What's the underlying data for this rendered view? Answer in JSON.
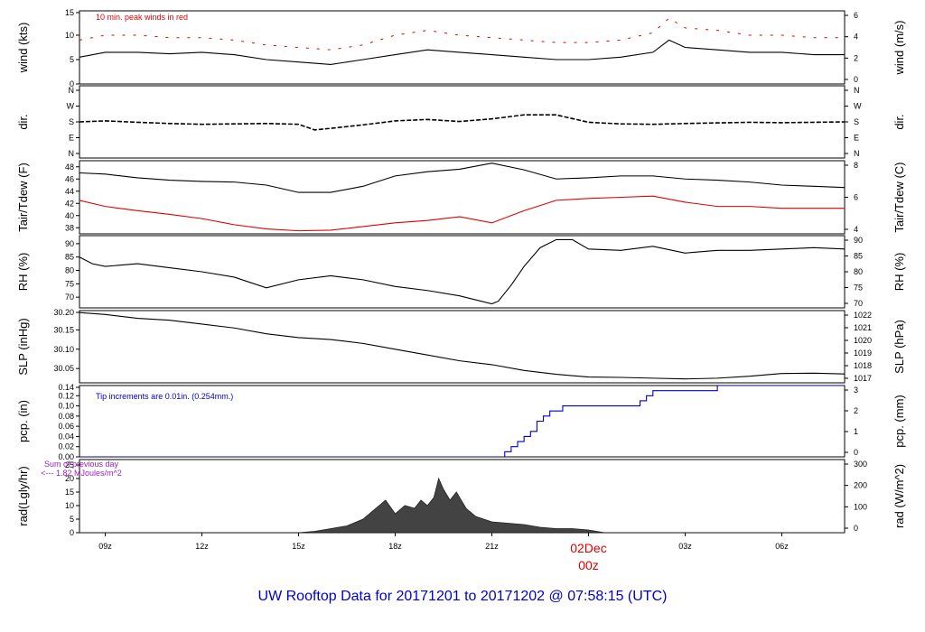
{
  "page": {
    "title": "UW Rooftop Data for 20171201  to  20171202 @ 07:58:15  (UTC)"
  },
  "chart_data": {
    "type": "line",
    "x_axis": {
      "unit": "hours since 2017-12-01 00z",
      "range": [
        8.2,
        31.95
      ],
      "ticks": [
        {
          "label": "09z",
          "value": 9
        },
        {
          "label": "12z",
          "value": 12
        },
        {
          "label": "15z",
          "value": 15
        },
        {
          "label": "18z",
          "value": 18
        },
        {
          "label": "21z",
          "value": 21
        },
        {
          "label": "00z",
          "value": 24
        },
        {
          "label": "03z",
          "value": 27
        },
        {
          "label": "06z",
          "value": 30
        }
      ],
      "date_marker": {
        "date": "02Dec",
        "time": "00z",
        "value": 24
      }
    },
    "panels": [
      {
        "id": "wind",
        "left_label": "wind (kts)",
        "right_label": "wind (m/s)",
        "ylim": [
          0,
          15
        ],
        "left_ticks": [
          "0",
          "5",
          "10",
          "15"
        ],
        "right_ticks": [
          "0",
          "2",
          "4",
          "6"
        ],
        "annotation": "10 min. peak winds in red",
        "series": [
          {
            "name": "wind speed",
            "color": "#000000",
            "x": [
              8.2,
              9,
              10,
              11,
              12,
              13,
              14,
              15,
              16,
              17,
              18,
              19,
              20,
              21,
              22,
              23,
              24,
              25,
              26,
              26.5,
              27,
              28,
              29,
              30,
              31,
              31.95
            ],
            "y": [
              5.5,
              6.5,
              6.5,
              6.2,
              6.5,
              6.0,
              5.0,
              4.5,
              4.0,
              5.0,
              6.0,
              7.0,
              6.5,
              6.0,
              5.5,
              5.0,
              5.0,
              5.5,
              6.5,
              9.0,
              7.5,
              7.0,
              6.5,
              6.5,
              6.0,
              6.0
            ]
          },
          {
            "name": "10 min peak",
            "color": "#e00000",
            "x": [
              8.2,
              9,
              10,
              11,
              12,
              13,
              14,
              15,
              16,
              17,
              18,
              19,
              20,
              21,
              22,
              23,
              24,
              25,
              26,
              26.5,
              27,
              28,
              29,
              30,
              31,
              31.95
            ],
            "y": [
              9.0,
              10.0,
              10.0,
              9.5,
              9.5,
              9.0,
              8.0,
              7.5,
              7.0,
              8.0,
              10.0,
              11.0,
              10.0,
              9.5,
              9.0,
              8.5,
              8.5,
              9.0,
              10.5,
              13.5,
              11.5,
              11.0,
              10.0,
              10.0,
              9.5,
              9.5
            ]
          }
        ]
      },
      {
        "id": "dir",
        "left_label": "dir.",
        "right_label": "dir.",
        "ylim": [
          0,
          360
        ],
        "left_ticks": [
          "N",
          "E",
          "S",
          "W",
          "N"
        ],
        "right_ticks": [
          "N",
          "E",
          "S",
          "W",
          "N"
        ],
        "series": [
          {
            "name": "wind direction (deg)",
            "color": "#000000",
            "x": [
              8.2,
              9,
              10,
              11,
              12,
              13,
              14,
              15,
              15.5,
              16,
              17,
              18,
              19,
              20,
              21,
              22,
              23,
              24,
              25,
              26,
              27,
              28,
              29,
              30,
              31,
              31.95
            ],
            "y": [
              180,
              185,
              178,
              172,
              168,
              170,
              172,
              168,
              140,
              148,
              165,
              185,
              192,
              182,
              195,
              215,
              215,
              178,
              170,
              168,
              172,
              175,
              178,
              176,
              178,
              180
            ]
          }
        ]
      },
      {
        "id": "temp",
        "left_label": "Tair/Tdew (F)",
        "right_label": "Tair/Tdew (C)",
        "ylim": [
          37,
          49
        ],
        "left_ticks": [
          "38",
          "40",
          "42",
          "44",
          "46",
          "48"
        ],
        "right_ticks": [
          "4",
          "6",
          "8"
        ],
        "series": [
          {
            "name": "Tair",
            "color": "#000000",
            "x": [
              8.2,
              9,
              10,
              11,
              12,
              13,
              14,
              15,
              16,
              17,
              18,
              19,
              20,
              21,
              22,
              23,
              24,
              25,
              26,
              27,
              28,
              29,
              30,
              31,
              31.95
            ],
            "y": [
              47.0,
              46.8,
              46.2,
              45.8,
              45.6,
              45.5,
              45.0,
              43.8,
              43.8,
              44.8,
              46.5,
              47.2,
              47.6,
              48.6,
              47.5,
              46.0,
              46.2,
              46.5,
              46.5,
              46.0,
              45.8,
              45.5,
              45.0,
              44.8,
              44.6
            ]
          },
          {
            "name": "Tdew",
            "color": "#e00000",
            "x": [
              8.2,
              9,
              10,
              11,
              12,
              13,
              14,
              15,
              16,
              17,
              18,
              19,
              20,
              21,
              22,
              23,
              24,
              25,
              26,
              27,
              28,
              29,
              30,
              31,
              31.95
            ],
            "y": [
              42.5,
              41.5,
              40.8,
              40.2,
              39.5,
              38.5,
              37.8,
              37.5,
              37.6,
              38.2,
              38.8,
              39.2,
              39.8,
              38.8,
              40.8,
              42.5,
              42.8,
              43.0,
              43.2,
              42.2,
              41.5,
              41.5,
              41.2,
              41.2,
              41.2
            ]
          }
        ]
      },
      {
        "id": "rh",
        "left_label": "RH (%)",
        "right_label": "RH (%)",
        "ylim": [
          66,
          93
        ],
        "left_ticks": [
          "70",
          "75",
          "80",
          "85",
          "90"
        ],
        "right_ticks": [
          "70",
          "75",
          "80",
          "85",
          "90"
        ],
        "series": [
          {
            "name": "relative humidity",
            "color": "#000000",
            "x": [
              8.2,
              8.6,
              9,
              10,
              11,
              12,
              13,
              14,
              15,
              16,
              17,
              18,
              19,
              20,
              21,
              21.2,
              21.6,
              22,
              22.5,
              23,
              23.5,
              24,
              25,
              26,
              27,
              28,
              29,
              30,
              31,
              31.95
            ],
            "y": [
              85.0,
              82.5,
              81.5,
              82.5,
              81.0,
              79.5,
              77.5,
              73.5,
              76.5,
              78.0,
              76.5,
              74.0,
              72.5,
              70.5,
              67.5,
              68.5,
              74.5,
              81.5,
              88.5,
              91.5,
              91.5,
              88.0,
              87.5,
              89.0,
              86.5,
              87.5,
              87.5,
              88.0,
              88.5,
              88.0
            ]
          }
        ]
      },
      {
        "id": "slp",
        "left_label": "SLP (inHg)",
        "right_label": "SLP (hPa)",
        "ylim": [
          30.013,
          30.2
        ],
        "left_ticks": [
          "30.05",
          "30.10",
          "30.15",
          "30.20"
        ],
        "right_ticks": [
          "1017",
          "1018",
          "1019",
          "1020",
          "1021",
          "1022"
        ],
        "series": [
          {
            "name": "sea level pressure",
            "color": "#000000",
            "x": [
              8.2,
              9,
              10,
              11,
              12,
              13,
              14,
              15,
              16,
              17,
              18,
              19,
              20,
              21,
              22,
              23,
              24,
              25,
              26,
              27,
              28,
              29,
              30,
              31,
              31.95
            ],
            "y": [
              30.195,
              30.19,
              30.18,
              30.175,
              30.165,
              30.155,
              30.14,
              30.13,
              30.125,
              30.115,
              30.1,
              30.085,
              30.07,
              30.06,
              30.045,
              30.035,
              30.028,
              30.027,
              30.025,
              30.023,
              30.025,
              30.03,
              30.037,
              30.038,
              30.036
            ]
          }
        ]
      },
      {
        "id": "pcp",
        "left_label": "pcp. (in)",
        "right_label": "pcp. (mm)",
        "ylim": [
          0,
          0.14
        ],
        "left_ticks": [
          "0.00",
          "0.02",
          "0.04",
          "0.06",
          "0.08",
          "0.10",
          "0.12",
          "0.14"
        ],
        "right_ticks": [
          "0",
          "1",
          "2",
          "3"
        ],
        "annotation": "Tip increments are 0.01in. (0.254mm.)",
        "series": [
          {
            "name": "accumulated precipitation",
            "color": "#0000cc",
            "step": true,
            "x": [
              8.2,
              21.4,
              21.6,
              21.8,
              22.0,
              22.2,
              22.4,
              22.6,
              22.8,
              23.2,
              25.6,
              25.8,
              26.0,
              26.3,
              27.0,
              28.0,
              31.95
            ],
            "y": [
              0.0,
              0.01,
              0.02,
              0.03,
              0.04,
              0.05,
              0.07,
              0.08,
              0.09,
              0.1,
              0.11,
              0.12,
              0.13,
              0.13,
              0.13,
              0.14,
              0.14
            ]
          }
        ]
      },
      {
        "id": "rad",
        "left_label": "rad(Lgly/hr)",
        "right_label": "rad (W/m^2)",
        "ylim": [
          0,
          27
        ],
        "left_ticks": [
          "0",
          "5",
          "10",
          "15",
          "20",
          "25"
        ],
        "right_ticks": [
          "0",
          "100",
          "200",
          "300"
        ],
        "annotation": [
          "Sum of previous day",
          "<--- 1.82 MJoules/m^2"
        ],
        "series": [
          {
            "name": "solar radiation",
            "color": "#222222",
            "fill": true,
            "x": [
              8.2,
              15.0,
              15.5,
              16.0,
              16.5,
              17.0,
              17.5,
              17.7,
              18.0,
              18.3,
              18.6,
              18.8,
              19.0,
              19.2,
              19.35,
              19.5,
              19.7,
              19.9,
              20.2,
              20.5,
              21.0,
              21.5,
              22.0,
              22.5,
              23.0,
              23.5,
              24.0,
              24.5,
              31.95
            ],
            "y": [
              0,
              0,
              0.5,
              1.5,
              2.5,
              5.0,
              10.0,
              12.0,
              7.0,
              10.0,
              9.0,
              12.0,
              10.0,
              13.0,
              20.0,
              16.0,
              12.0,
              15.0,
              9.0,
              6.0,
              4.0,
              3.5,
              3.0,
              2.0,
              1.5,
              1.5,
              1.0,
              0,
              0
            ]
          }
        ]
      }
    ]
  }
}
